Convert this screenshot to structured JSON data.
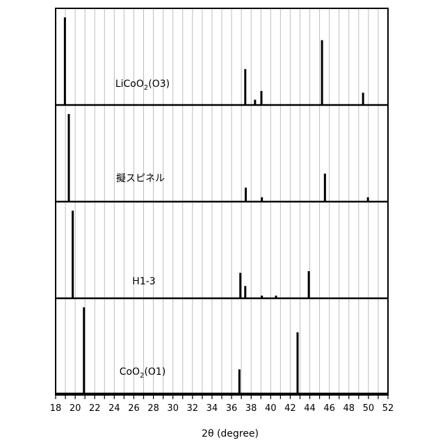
{
  "chart_data": {
    "type": "bar",
    "xlabel": "2θ (degree)",
    "xlim": [
      18,
      52
    ],
    "x_ticks": [
      18,
      20,
      22,
      24,
      26,
      28,
      30,
      32,
      34,
      36,
      38,
      40,
      42,
      44,
      46,
      48,
      50,
      52
    ],
    "grid": "vertical, every 1 degree",
    "panels": [
      {
        "name": "LiCoO2(O3)",
        "label_base": "LiCoO",
        "label_sub": "2",
        "label_tail": "(O3)",
        "peaks": [
          {
            "x": 18.95,
            "h": 1.0
          },
          {
            "x": 37.4,
            "h": 0.41
          },
          {
            "x": 38.4,
            "h": 0.06
          },
          {
            "x": 39.05,
            "h": 0.16
          },
          {
            "x": 45.25,
            "h": 0.74
          },
          {
            "x": 49.45,
            "h": 0.14
          }
        ]
      },
      {
        "name": "擬スピネル",
        "label_base": "擬スピネル",
        "label_sub": "",
        "label_tail": "",
        "peaks": [
          {
            "x": 19.35,
            "h": 1.0
          },
          {
            "x": 37.45,
            "h": 0.16
          },
          {
            "x": 39.1,
            "h": 0.05
          },
          {
            "x": 45.55,
            "h": 0.32
          },
          {
            "x": 49.95,
            "h": 0.05
          }
        ]
      },
      {
        "name": "H1-3",
        "label_base": "H1-3",
        "label_sub": "",
        "label_tail": "",
        "peaks": [
          {
            "x": 19.75,
            "h": 1.0
          },
          {
            "x": 36.9,
            "h": 0.29
          },
          {
            "x": 37.4,
            "h": 0.14
          },
          {
            "x": 39.1,
            "h": 0.03
          },
          {
            "x": 40.55,
            "h": 0.03
          },
          {
            "x": 43.9,
            "h": 0.31
          }
        ]
      },
      {
        "name": "CoO2(O1)",
        "label_base": "CoO",
        "label_sub": "2",
        "label_tail": "(O1)",
        "peaks": [
          {
            "x": 20.9,
            "h": 1.0
          },
          {
            "x": 36.8,
            "h": 0.28
          },
          {
            "x": 42.75,
            "h": 0.71
          }
        ]
      }
    ]
  }
}
